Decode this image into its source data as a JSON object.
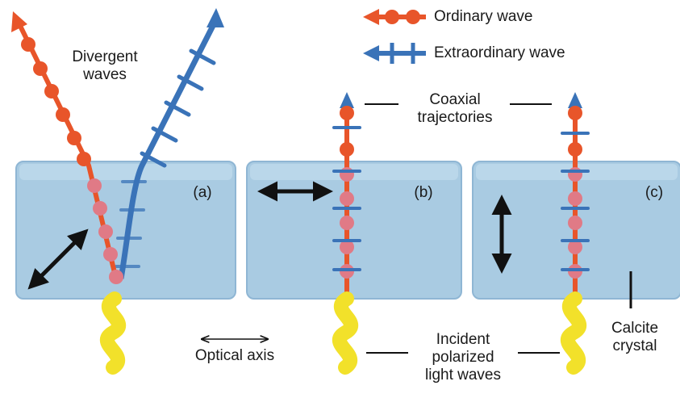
{
  "legend": {
    "ordinary": "Ordinary wave",
    "extraordinary": "Extraordinary wave"
  },
  "labels": {
    "divergent_line1": "Divergent",
    "divergent_line2": "waves",
    "coaxial_line1": "Coaxial",
    "coaxial_line2": "trajectories",
    "panel_a": "(a)",
    "panel_b": "(b)",
    "panel_c": "(c)",
    "optical_axis": "Optical axis",
    "incident_line1": "Incident",
    "incident_line2": "polarized",
    "incident_line3": "light waves",
    "calcite_line1": "Calcite",
    "calcite_line2": "crystal"
  },
  "colors": {
    "ordinary_wave": "#e8552a",
    "extraordinary_wave": "#3a73b8",
    "crystal_fill": "#a9cbe2",
    "crystal_edge": "#8fb6d4",
    "inside_bead": "#e07a86",
    "incident_light": "#f2e12a",
    "axis_arrow": "#111111"
  }
}
